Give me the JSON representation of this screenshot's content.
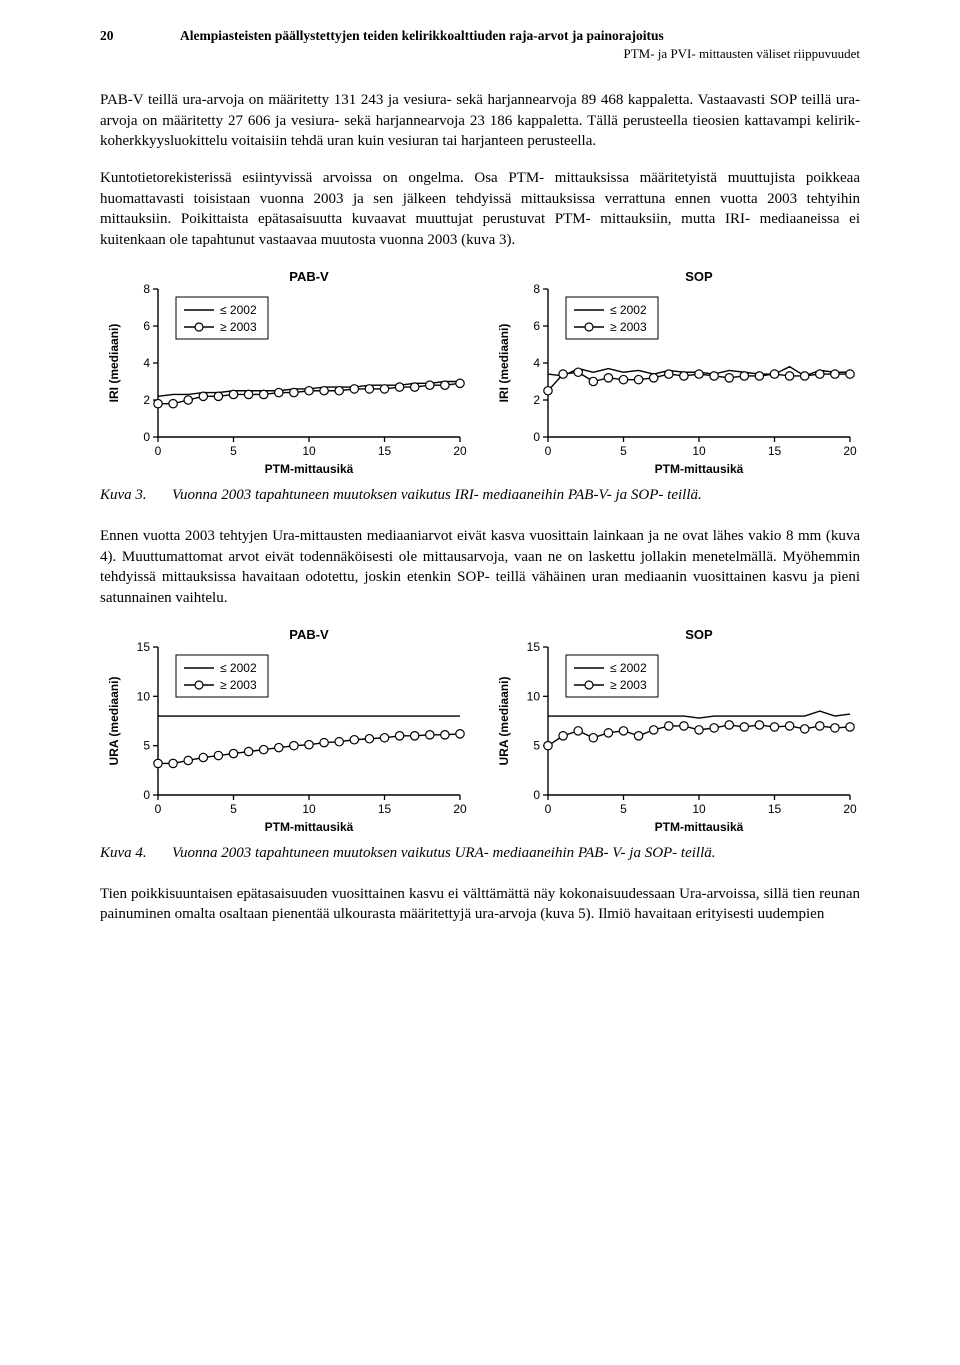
{
  "header": {
    "page_number": "20",
    "title": "Alempiasteisten päällystettyjen teiden kelirikkoalttiuden raja-arvot ja painorajoitus",
    "subtitle": "PTM- ja PVI- mittausten väliset riippuvuudet"
  },
  "paragraphs": {
    "p1": "PAB-V teillä ura-arvoja on määritetty 131 243 ja vesiura- sekä harjannearvoja 89 468 kappaletta. Vastaavasti SOP teillä ura-arvoja on määritetty 27 606 ja vesiura- sekä harjannearvoja 23 186 kappaletta. Tällä perusteella tieosien kattavampi kelirik­koherkkyysluokittelu voitaisiin tehdä uran kuin vesiuran tai harjanteen perusteella.",
    "p2": "Kuntotietorekisterissä esiintyvissä arvoissa on ongelma. Osa PTM- mittauksissa määritetyistä muuttujista poikkeaa huomattavasti toisistaan vuonna 2003 ja sen jäl­keen tehdyissä mittauksissa verrattuna ennen vuotta 2003 tehtyihin mittauksiin. Poi­kittaista epätasaisuutta kuvaavat muuttujat perustuvat PTM- mittauksiin, mutta IRI- mediaaneissa ei kuitenkaan ole tapahtunut vastaavaa muutosta vuonna 2003 (kuva 3).",
    "p3": "Ennen vuotta 2003 tehtyjen Ura-mittausten mediaaniarvot eivät kasva vuosittain lainkaan ja ne ovat lähes vakio 8 mm (kuva 4). Muuttumattomat arvot eivät toden­näköisesti ole mittausarvoja, vaan ne on laskettu jollakin menetelmällä. Myöhemmin tehdyissä mittauksissa havaitaan odotettu, joskin etenkin SOP- teillä vähäinen uran mediaanin vuosittainen kasvu ja pieni satunnainen vaihtelu.",
    "p4": "Tien poikkisuuntaisen epätasaisuuden vuosittainen kasvu ei välttämättä näy koko­naisuudessaan Ura-arvoissa, sillä tien reunan painuminen omalta osaltaan pienentää ulkourasta määritettyjä ura-arvoja (kuva 5). Ilmiö havaitaan erityisesti uudempien"
  },
  "captions": {
    "fig3_label": "Kuva 3.",
    "fig3_text": "Vuonna 2003 tapahtuneen muutoksen vaikutus IRI- mediaaneihin PAB-V- ja SOP- teillä.",
    "fig4_label": "Kuva 4.",
    "fig4_text": "Vuonna 2003 tapahtuneen muutoksen vaikutus URA- mediaaneihin PAB- V- ja SOP- teillä."
  },
  "charts": {
    "fig3_left": {
      "type": "line",
      "title": "PAB-V",
      "ylabel": "IRI (mediaani)",
      "xlabel": "PTM-mittausikä",
      "xlim": [
        0,
        20
      ],
      "ylim": [
        0,
        8
      ],
      "xticks": [
        0,
        5,
        10,
        15,
        20
      ],
      "yticks": [
        0,
        2,
        4,
        6,
        8
      ],
      "legend": [
        "≤ 2002",
        "≥ 2003"
      ],
      "series_a": {
        "x": [
          0,
          1,
          2,
          3,
          4,
          5,
          6,
          7,
          8,
          9,
          10,
          11,
          12,
          13,
          14,
          15,
          16,
          17,
          18,
          19,
          20
        ],
        "y": [
          2.2,
          2.3,
          2.3,
          2.4,
          2.4,
          2.5,
          2.5,
          2.5,
          2.5,
          2.6,
          2.6,
          2.7,
          2.7,
          2.7,
          2.8,
          2.8,
          2.8,
          2.9,
          2.9,
          3.0,
          3.0
        ]
      },
      "series_b": {
        "x": [
          0,
          1,
          2,
          3,
          4,
          5,
          6,
          7,
          8,
          9,
          10,
          11,
          12,
          13,
          14,
          15,
          16,
          17,
          18,
          19,
          20
        ],
        "y": [
          1.8,
          1.8,
          2.0,
          2.2,
          2.2,
          2.3,
          2.3,
          2.3,
          2.4,
          2.4,
          2.5,
          2.5,
          2.5,
          2.6,
          2.6,
          2.6,
          2.7,
          2.7,
          2.8,
          2.8,
          2.9
        ]
      },
      "line_color": "#000000",
      "marker_fill": "#ffffff",
      "marker_stroke": "#000000",
      "marker_radius": 4.2,
      "line_width": 1.4,
      "background": "#ffffff"
    },
    "fig3_right": {
      "type": "line",
      "title": "SOP",
      "ylabel": "IRI (mediaani)",
      "xlabel": "PTM-mittausikä",
      "xlim": [
        0,
        20
      ],
      "ylim": [
        0,
        8
      ],
      "xticks": [
        0,
        5,
        10,
        15,
        20
      ],
      "yticks": [
        0,
        2,
        4,
        6,
        8
      ],
      "legend": [
        "≤ 2002",
        "≥ 2003"
      ],
      "series_a": {
        "x": [
          0,
          1,
          2,
          3,
          4,
          5,
          6,
          7,
          8,
          9,
          10,
          11,
          12,
          13,
          14,
          15,
          16,
          17,
          18,
          19,
          20
        ],
        "y": [
          3.4,
          3.3,
          3.7,
          3.5,
          3.7,
          3.5,
          3.6,
          3.4,
          3.6,
          3.5,
          3.5,
          3.4,
          3.6,
          3.5,
          3.4,
          3.4,
          3.8,
          3.3,
          3.6,
          3.5,
          3.5
        ]
      },
      "series_b": {
        "x": [
          0,
          1,
          2,
          3,
          4,
          5,
          6,
          7,
          8,
          9,
          10,
          11,
          12,
          13,
          14,
          15,
          16,
          17,
          18,
          19,
          20
        ],
        "y": [
          2.5,
          3.4,
          3.5,
          3.0,
          3.2,
          3.1,
          3.1,
          3.2,
          3.4,
          3.3,
          3.4,
          3.3,
          3.2,
          3.3,
          3.3,
          3.4,
          3.3,
          3.3,
          3.4,
          3.4,
          3.4
        ]
      },
      "line_color": "#000000",
      "marker_fill": "#ffffff",
      "marker_stroke": "#000000",
      "marker_radius": 4.2,
      "line_width": 1.4,
      "background": "#ffffff"
    },
    "fig4_left": {
      "type": "line",
      "title": "PAB-V",
      "ylabel": "URA (mediaani)",
      "xlabel": "PTM-mittausikä",
      "xlim": [
        0,
        20
      ],
      "ylim": [
        0,
        15
      ],
      "xticks": [
        0,
        5,
        10,
        15,
        20
      ],
      "yticks": [
        0,
        5,
        10,
        15
      ],
      "legend": [
        "≤ 2002",
        "≥ 2003"
      ],
      "series_a": {
        "x": [
          0,
          1,
          2,
          3,
          4,
          5,
          6,
          7,
          8,
          9,
          10,
          11,
          12,
          13,
          14,
          15,
          16,
          17,
          18,
          19,
          20
        ],
        "y": [
          8.0,
          8.0,
          8.0,
          8.0,
          8.0,
          8.0,
          8.0,
          8.0,
          8.0,
          8.0,
          8.0,
          8.0,
          8.0,
          8.0,
          8.0,
          8.0,
          8.0,
          8.0,
          8.0,
          8.0,
          8.0
        ]
      },
      "series_b": {
        "x": [
          0,
          1,
          2,
          3,
          4,
          5,
          6,
          7,
          8,
          9,
          10,
          11,
          12,
          13,
          14,
          15,
          16,
          17,
          18,
          19,
          20
        ],
        "y": [
          3.2,
          3.2,
          3.5,
          3.8,
          4.0,
          4.2,
          4.4,
          4.6,
          4.8,
          5.0,
          5.1,
          5.3,
          5.4,
          5.6,
          5.7,
          5.8,
          6.0,
          6.0,
          6.1,
          6.1,
          6.2
        ]
      },
      "line_color": "#000000",
      "marker_fill": "#ffffff",
      "marker_stroke": "#000000",
      "marker_radius": 4.2,
      "line_width": 1.4,
      "background": "#ffffff"
    },
    "fig4_right": {
      "type": "line",
      "title": "SOP",
      "ylabel": "URA (mediaani)",
      "xlabel": "PTM-mittausikä",
      "xlim": [
        0,
        20
      ],
      "ylim": [
        0,
        15
      ],
      "xticks": [
        0,
        5,
        10,
        15,
        20
      ],
      "yticks": [
        0,
        5,
        10,
        15
      ],
      "legend": [
        "≤ 2002",
        "≥ 2003"
      ],
      "series_a": {
        "x": [
          0,
          1,
          2,
          3,
          4,
          5,
          6,
          7,
          8,
          9,
          10,
          11,
          12,
          13,
          14,
          15,
          16,
          17,
          18,
          19,
          20
        ],
        "y": [
          8.0,
          8.0,
          8.0,
          8.0,
          8.0,
          8.0,
          8.0,
          8.0,
          8.0,
          8.0,
          7.8,
          8.0,
          8.0,
          8.0,
          8.0,
          8.0,
          8.0,
          8.0,
          8.5,
          8.0,
          8.2
        ]
      },
      "series_b": {
        "x": [
          0,
          1,
          2,
          3,
          4,
          5,
          6,
          7,
          8,
          9,
          10,
          11,
          12,
          13,
          14,
          15,
          16,
          17,
          18,
          19,
          20
        ],
        "y": [
          5.0,
          6.0,
          6.5,
          5.8,
          6.3,
          6.5,
          6.0,
          6.6,
          7.0,
          7.0,
          6.6,
          6.8,
          7.1,
          6.9,
          7.1,
          6.9,
          7.0,
          6.7,
          7.0,
          6.8,
          6.9
        ]
      },
      "line_color": "#000000",
      "marker_fill": "#ffffff",
      "marker_stroke": "#000000",
      "marker_radius": 4.2,
      "line_width": 1.4,
      "background": "#ffffff"
    }
  }
}
